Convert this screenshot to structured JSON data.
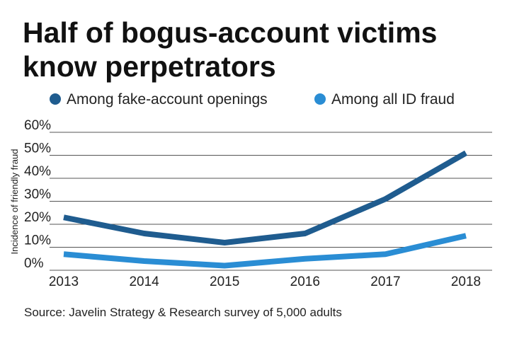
{
  "chart_data": {
    "type": "line",
    "title": "Half of bogus-account victims know perpetrators",
    "y_label": "Incidence of friendly fraud",
    "source": "Source: Javelin Strategy & Research survey of 5,000 adults",
    "categories": [
      "2013",
      "2014",
      "2015",
      "2016",
      "2017",
      "2018"
    ],
    "series": [
      {
        "name": "Among fake-account openings",
        "color": "#1f5c8f",
        "values": [
          23,
          16,
          12,
          16,
          31,
          51
        ]
      },
      {
        "name": "Among all ID fraud",
        "color": "#2a8dd4",
        "values": [
          7,
          4,
          2,
          5,
          7,
          15
        ]
      }
    ],
    "ylim": [
      0,
      60
    ],
    "yticks": [
      {
        "value": 0,
        "label": "0%"
      },
      {
        "value": 10,
        "label": "10%"
      },
      {
        "value": 20,
        "label": "20%"
      },
      {
        "value": 30,
        "label": "30%"
      },
      {
        "value": 40,
        "label": "40%"
      },
      {
        "value": 50,
        "label": "50%"
      },
      {
        "value": 60,
        "label": "60%"
      }
    ],
    "grid": true
  }
}
